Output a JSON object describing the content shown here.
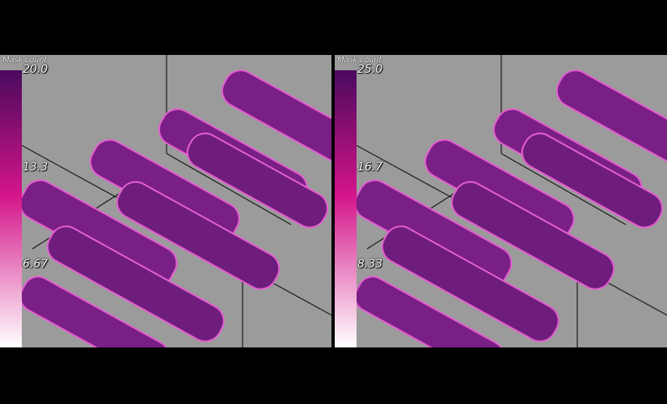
{
  "panels": [
    {
      "colorbar_title": "Mask count",
      "ticks": [
        "20.0",
        "13.3",
        "6.67"
      ]
    },
    {
      "colorbar_title": "Mask count",
      "ticks": [
        "25.0",
        "16.7",
        "8.33"
      ]
    }
  ],
  "colors": {
    "background": "#000000",
    "viewport": "#9b9b9b",
    "rod_fill": "#7a1f86",
    "rod_edge": "#e45fcf",
    "colorbar_top": "#4a0a5e",
    "colorbar_mid": "#d4148a",
    "colorbar_bottom": "#ffffff"
  }
}
